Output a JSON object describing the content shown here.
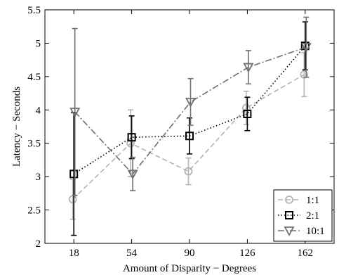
{
  "chart_data": {
    "type": "line",
    "xlabel": "Amount of Disparity − Degrees",
    "ylabel": "Latency − Seconds",
    "x": [
      18,
      54,
      90,
      126,
      162
    ],
    "xlim": [
      0,
      180
    ],
    "ylim": [
      2,
      5.5
    ],
    "xticks": [
      "18",
      "54",
      "90",
      "126",
      "162"
    ],
    "yticks": [
      "2",
      "2.5",
      "3",
      "3.5",
      "4",
      "4.5",
      "5",
      "5.5"
    ],
    "grid": false,
    "legend_position": "bottom-right",
    "series": [
      {
        "name": "1:1",
        "color": "#b4b4b4",
        "line_style": "dashed",
        "marker": "circle",
        "y": [
          2.66,
          3.5,
          3.08,
          4.03,
          4.53
        ],
        "err": [
          0.3,
          0.5,
          0.2,
          0.25,
          0.33
        ]
      },
      {
        "name": "2:1",
        "color": "#000000",
        "line_style": "dotted",
        "marker": "square",
        "y": [
          3.04,
          3.59,
          3.61,
          3.94,
          4.96
        ],
        "err": [
          0.92,
          0.32,
          0.27,
          0.25,
          0.36
        ]
      },
      {
        "name": "10:1",
        "color": "#707070",
        "line_style": "dashdot",
        "marker": "triangle-down",
        "y": [
          3.97,
          3.04,
          4.12,
          4.64,
          4.94
        ],
        "err": [
          1.25,
          0.25,
          0.35,
          0.25,
          0.45
        ]
      }
    ]
  }
}
